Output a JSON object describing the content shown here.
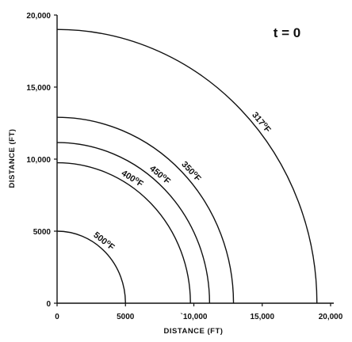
{
  "chart_data": {
    "type": "line",
    "annotation": "t = 0",
    "xlabel": "DISTANCE (FT)",
    "ylabel": "DISTANCE (FT)",
    "xlim": [
      0,
      20000
    ],
    "ylim": [
      0,
      20000
    ],
    "x_ticks": [
      {
        "value": 0,
        "label": "0"
      },
      {
        "value": 5000,
        "label": "5000"
      },
      {
        "value": 10000,
        "label": "`10,000"
      },
      {
        "value": 15000,
        "label": "15,000"
      },
      {
        "value": 20000,
        "label": "20,000"
      }
    ],
    "y_ticks": [
      {
        "value": 0,
        "label": "0"
      },
      {
        "value": 5000,
        "label": "5000"
      },
      {
        "value": 10000,
        "label": "10,000"
      },
      {
        "value": 15000,
        "label": "15,000"
      },
      {
        "value": 20000,
        "label": "20,000"
      }
    ],
    "series": [
      {
        "name": "500°F",
        "label_main": "500",
        "label_sup": "o",
        "label_unit": "F",
        "radius": 5000
      },
      {
        "name": "400°F",
        "label_main": "400",
        "label_sup": "o",
        "label_unit": "F",
        "radius": 9750
      },
      {
        "name": "450°F",
        "label_main": "450",
        "label_sup": "o",
        "label_unit": "F",
        "radius": 11150
      },
      {
        "name": "350°F",
        "label_main": "350",
        "label_sup": "o",
        "label_unit": "F",
        "radius": 12900
      },
      {
        "name": "317°F",
        "label_main": "317",
        "label_sup": "o",
        "label_unit": "F",
        "radius": 19000
      }
    ]
  }
}
